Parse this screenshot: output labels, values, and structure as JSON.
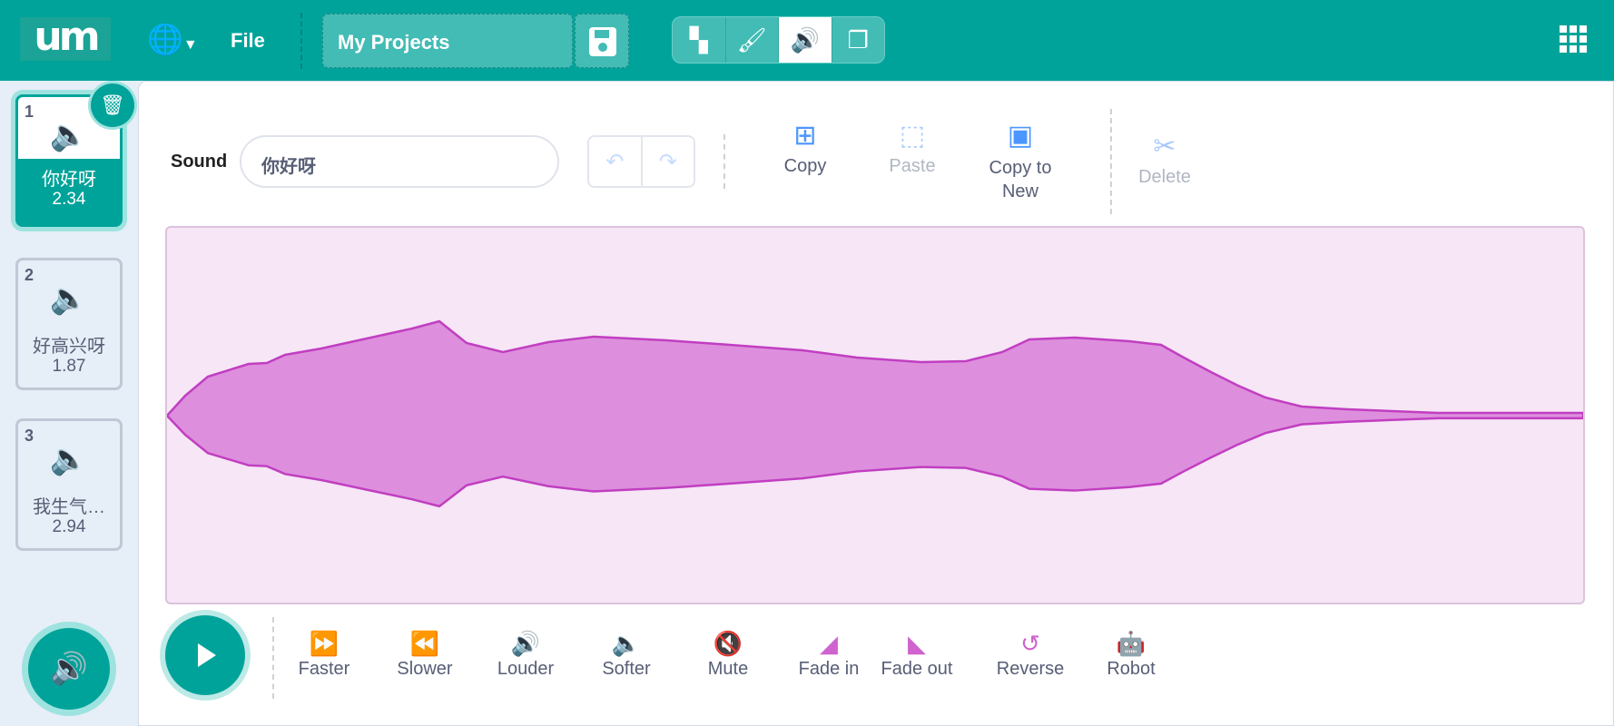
{
  "header": {
    "logo": "um",
    "menu_file": "File",
    "project_title": "My Projects",
    "tabs": [
      {
        "name": "code",
        "icon": "blocks-icon"
      },
      {
        "name": "costumes",
        "icon": "brush-icon"
      },
      {
        "name": "sounds",
        "icon": "speaker-icon",
        "active": true
      },
      {
        "name": "stage",
        "icon": "layers-icon"
      }
    ]
  },
  "sounds": [
    {
      "index": "1",
      "name": "你好呀",
      "duration": "2.34",
      "selected": true
    },
    {
      "index": "2",
      "name": "好高兴呀",
      "duration": "1.87"
    },
    {
      "index": "3",
      "name": "我生气…",
      "duration": "2.94"
    }
  ],
  "editor": {
    "sound_label": "Sound",
    "sound_name": "你好呀",
    "copy": "Copy",
    "paste": "Paste",
    "copy_to_new": "Copy to New",
    "delete": "Delete"
  },
  "effects": [
    "Faster",
    "Slower",
    "Louder",
    "Softer",
    "Mute",
    "Fade in",
    "Fade out",
    "Reverse",
    "Robot"
  ],
  "colors": {
    "brand": "#00a39a",
    "effect": "#cf63cf",
    "waveform_fill": "#dd8fdd",
    "waveform_stroke": "#c13ec1",
    "tool_blue": "#4c97ff"
  }
}
